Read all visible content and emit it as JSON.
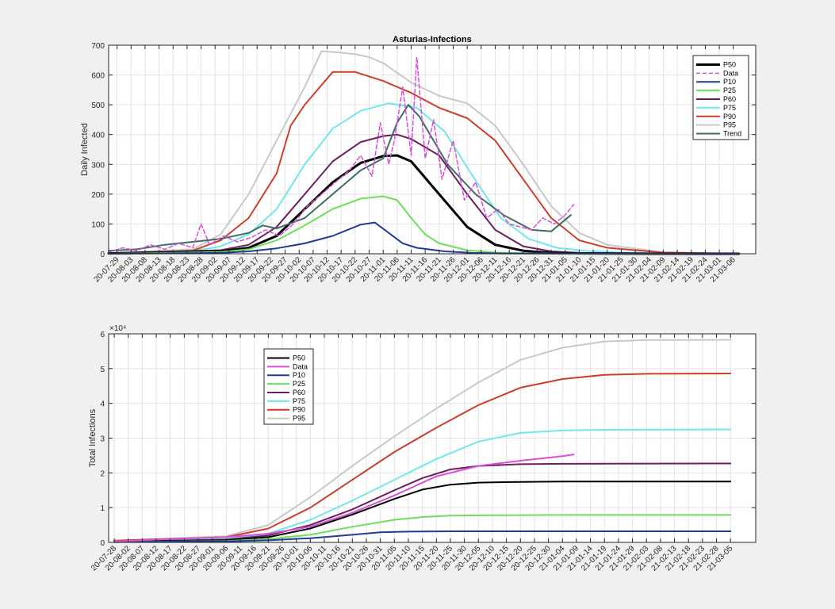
{
  "chart_data": [
    {
      "type": "line",
      "title": "Asturias-Infections",
      "ylabel": "Daily Infected",
      "xlabel": "",
      "ylim": [
        0,
        700
      ],
      "yticks": [
        0,
        100,
        200,
        300,
        400,
        500,
        600,
        700
      ],
      "yexp": "",
      "grid": true,
      "legend_position": "top-right",
      "x_start": "2020-07-26",
      "x_end": "2021-03-14",
      "xticks": [
        "20-07-29",
        "20-08-03",
        "20-08-08",
        "20-08-13",
        "20-08-18",
        "20-08-23",
        "20-08-28",
        "20-09-02",
        "20-09-07",
        "20-09-12",
        "20-09-17",
        "20-09-22",
        "20-09-27",
        "20-10-02",
        "20-10-07",
        "20-10-12",
        "20-10-17",
        "20-10-22",
        "20-10-27",
        "20-11-01",
        "20-11-06",
        "20-11-11",
        "20-11-16",
        "20-11-21",
        "20-11-26",
        "20-12-01",
        "20-12-06",
        "20-12-11",
        "20-12-16",
        "20-12-21",
        "20-12-26",
        "20-12-31",
        "21-01-05",
        "21-01-10",
        "21-01-15",
        "21-01-20",
        "21-01-25",
        "21-01-30",
        "21-02-04",
        "21-02-09",
        "21-02-14",
        "21-02-19",
        "21-02-24",
        "21-03-01",
        "21-03-06"
      ],
      "series": [
        {
          "name": "P95",
          "color": "#c8c8c8",
          "width": 2,
          "x": [
            "2020-07-26",
            "2020-08-25",
            "2020-09-04",
            "2020-09-14",
            "2020-09-24",
            "2020-10-04",
            "2020-10-10",
            "2020-10-17",
            "2020-10-22",
            "2020-10-27",
            "2020-11-01",
            "2020-11-11",
            "2020-11-21",
            "2020-12-01",
            "2020-12-11",
            "2020-12-21",
            "2020-12-31",
            "2021-01-10",
            "2021-01-20",
            "2021-02-09",
            "2021-03-08"
          ],
          "y": [
            2,
            15,
            65,
            200,
            380,
            560,
            680,
            675,
            670,
            660,
            640,
            575,
            530,
            505,
            430,
            300,
            160,
            70,
            30,
            5,
            0
          ]
        },
        {
          "name": "P90",
          "color": "#cc3e2b",
          "width": 2,
          "x": [
            "2020-07-26",
            "2020-08-25",
            "2020-09-04",
            "2020-09-14",
            "2020-09-24",
            "2020-09-29",
            "2020-10-04",
            "2020-10-14",
            "2020-10-22",
            "2020-11-01",
            "2020-11-11",
            "2020-11-21",
            "2020-12-01",
            "2020-12-11",
            "2020-12-21",
            "2020-12-31",
            "2021-01-10",
            "2021-01-20",
            "2021-02-09",
            "2021-03-08"
          ],
          "y": [
            2,
            10,
            45,
            120,
            270,
            430,
            500,
            610,
            610,
            580,
            540,
            490,
            455,
            380,
            250,
            120,
            45,
            20,
            4,
            0
          ]
        },
        {
          "name": "P75",
          "color": "#6ee8e8",
          "width": 2,
          "x": [
            "2020-07-26",
            "2020-08-25",
            "2020-09-04",
            "2020-09-14",
            "2020-09-24",
            "2020-10-04",
            "2020-10-14",
            "2020-10-24",
            "2020-11-03",
            "2020-11-13",
            "2020-11-23",
            "2020-12-03",
            "2020-12-13",
            "2020-12-23",
            "2021-01-02",
            "2021-01-12",
            "2021-01-22",
            "2021-02-09",
            "2021-03-08"
          ],
          "y": [
            1,
            8,
            25,
            65,
            150,
            300,
            420,
            480,
            505,
            490,
            410,
            260,
            120,
            50,
            20,
            10,
            5,
            1,
            0
          ]
        },
        {
          "name": "P60",
          "color": "#6b1f5c",
          "width": 2,
          "x": [
            "2020-07-26",
            "2020-09-04",
            "2020-09-14",
            "2020-09-24",
            "2020-10-04",
            "2020-10-14",
            "2020-10-24",
            "2020-11-01",
            "2020-11-06",
            "2020-11-11",
            "2020-11-21",
            "2020-12-01",
            "2020-12-11",
            "2020-12-21",
            "2020-12-31",
            "2021-01-10",
            "2021-02-09",
            "2021-03-08"
          ],
          "y": [
            1,
            12,
            30,
            90,
            200,
            310,
            375,
            395,
            400,
            385,
            330,
            200,
            80,
            25,
            8,
            3,
            1,
            0
          ]
        },
        {
          "name": "P50",
          "color": "#000000",
          "width": 3,
          "x": [
            "2020-07-26",
            "2020-09-04",
            "2020-09-14",
            "2020-09-24",
            "2020-10-04",
            "2020-10-14",
            "2020-10-24",
            "2020-11-01",
            "2020-11-06",
            "2020-11-11",
            "2020-11-21",
            "2020-12-01",
            "2020-12-11",
            "2020-12-21",
            "2020-12-31",
            "2021-01-10",
            "2021-02-09",
            "2021-03-08"
          ],
          "y": [
            1,
            8,
            20,
            60,
            150,
            240,
            305,
            328,
            330,
            310,
            200,
            90,
            30,
            10,
            3,
            1,
            0,
            0
          ]
        },
        {
          "name": "P25",
          "color": "#6de05a",
          "width": 2,
          "x": [
            "2020-07-26",
            "2020-09-04",
            "2020-09-14",
            "2020-09-24",
            "2020-10-04",
            "2020-10-14",
            "2020-10-24",
            "2020-11-01",
            "2020-11-06",
            "2020-11-11",
            "2020-11-16",
            "2020-11-21",
            "2020-12-01",
            "2020-12-11",
            "2020-12-21",
            "2021-01-05",
            "2021-03-08"
          ],
          "y": [
            0,
            6,
            15,
            45,
            95,
            150,
            185,
            193,
            180,
            120,
            65,
            35,
            12,
            4,
            2,
            0,
            0
          ]
        },
        {
          "name": "P10",
          "color": "#1f3c96",
          "width": 2,
          "x": [
            "2020-07-26",
            "2020-09-04",
            "2020-09-14",
            "2020-09-24",
            "2020-10-04",
            "2020-10-14",
            "2020-10-24",
            "2020-10-29",
            "2020-11-03",
            "2020-11-08",
            "2020-11-13",
            "2020-11-23",
            "2020-12-03",
            "2020-12-13",
            "2021-03-08"
          ],
          "y": [
            0,
            3,
            8,
            18,
            35,
            60,
            98,
            105,
            70,
            35,
            20,
            8,
            3,
            1,
            0
          ]
        },
        {
          "name": "Trend",
          "color": "#3f6b68",
          "width": 2,
          "x": [
            "2020-07-26",
            "2020-08-05",
            "2020-08-15",
            "2020-08-25",
            "2020-09-04",
            "2020-09-14",
            "2020-09-19",
            "2020-09-24",
            "2020-10-04",
            "2020-10-14",
            "2020-10-24",
            "2020-11-01",
            "2020-11-06",
            "2020-11-10",
            "2020-11-14",
            "2020-11-24",
            "2020-12-04",
            "2020-12-14",
            "2020-12-24",
            "2020-12-31",
            "2021-01-07"
          ],
          "y": [
            10,
            15,
            30,
            40,
            50,
            70,
            95,
            85,
            120,
            200,
            280,
            320,
            440,
            500,
            460,
            300,
            200,
            130,
            80,
            75,
            130
          ]
        },
        {
          "name": "Data",
          "color": "#d84fd8",
          "width": 1.5,
          "dash": "5,3",
          "x": [
            "2020-07-26",
            "2020-07-31",
            "2020-08-05",
            "2020-08-10",
            "2020-08-15",
            "2020-08-20",
            "2020-08-25",
            "2020-08-28",
            "2020-08-31",
            "2020-09-05",
            "2020-09-10",
            "2020-09-15",
            "2020-09-20",
            "2020-09-25",
            "2020-09-30",
            "2020-10-05",
            "2020-10-10",
            "2020-10-15",
            "2020-10-20",
            "2020-10-24",
            "2020-10-28",
            "2020-10-31",
            "2020-11-03",
            "2020-11-05",
            "2020-11-08",
            "2020-11-11",
            "2020-11-13",
            "2020-11-16",
            "2020-11-19",
            "2020-11-22",
            "2020-11-26",
            "2020-11-30",
            "2020-12-04",
            "2020-12-08",
            "2020-12-12",
            "2020-12-16",
            "2020-12-20",
            "2020-12-24",
            "2020-12-28",
            "2021-01-01",
            "2021-01-05",
            "2021-01-08"
          ],
          "y": [
            5,
            20,
            10,
            30,
            15,
            35,
            20,
            100,
            30,
            60,
            40,
            55,
            80,
            60,
            100,
            160,
            200,
            240,
            280,
            330,
            260,
            440,
            300,
            380,
            560,
            330,
            660,
            320,
            450,
            250,
            380,
            180,
            240,
            120,
            150,
            100,
            90,
            80,
            120,
            100,
            130,
            165
          ]
        }
      ]
    },
    {
      "type": "line",
      "title": "",
      "ylabel": "Total Infections",
      "xlabel": "",
      "ylim": [
        0,
        6
      ],
      "yticks": [
        0,
        1,
        2,
        3,
        4,
        5,
        6
      ],
      "yexp": "×10⁴",
      "grid": true,
      "legend_position": "top-left",
      "x_start": "2020-07-26",
      "x_end": "2021-03-14",
      "xticks": [
        "20-07-28",
        "20-08-02",
        "20-08-07",
        "20-08-12",
        "20-08-17",
        "20-08-22",
        "20-08-27",
        "20-09-01",
        "20-09-06",
        "20-09-11",
        "20-09-16",
        "20-09-21",
        "20-09-26",
        "20-10-01",
        "20-10-06",
        "20-10-11",
        "20-10-16",
        "20-10-21",
        "20-10-26",
        "20-10-31",
        "20-11-05",
        "20-11-10",
        "20-11-15",
        "20-11-20",
        "20-11-25",
        "20-11-30",
        "20-12-05",
        "20-12-10",
        "20-12-15",
        "20-12-20",
        "20-12-25",
        "20-12-30",
        "21-01-04",
        "21-01-09",
        "21-01-14",
        "21-01-19",
        "21-01-24",
        "21-01-29",
        "21-02-03",
        "21-02-08",
        "21-02-13",
        "21-02-18",
        "21-02-23",
        "21-02-28",
        "21-03-05"
      ],
      "series": [
        {
          "name": "P95",
          "color": "#c8c8c8",
          "width": 2,
          "x": [
            "2020-07-28",
            "2020-09-06",
            "2020-09-21",
            "2020-10-06",
            "2020-10-21",
            "2020-11-05",
            "2020-11-20",
            "2020-12-05",
            "2020-12-20",
            "2021-01-04",
            "2021-01-19",
            "2021-02-03",
            "2021-03-05"
          ],
          "y": [
            0.05,
            0.18,
            0.5,
            1.3,
            2.2,
            3.05,
            3.85,
            4.6,
            5.25,
            5.6,
            5.78,
            5.82,
            5.83
          ]
        },
        {
          "name": "P90",
          "color": "#cc3e2b",
          "width": 2,
          "x": [
            "2020-07-28",
            "2020-09-06",
            "2020-09-21",
            "2020-10-06",
            "2020-10-21",
            "2020-11-05",
            "2020-11-20",
            "2020-12-05",
            "2020-12-20",
            "2021-01-04",
            "2021-01-19",
            "2021-02-03",
            "2021-03-05"
          ],
          "y": [
            0.05,
            0.15,
            0.4,
            1.0,
            1.8,
            2.6,
            3.3,
            3.95,
            4.45,
            4.7,
            4.82,
            4.85,
            4.86
          ]
        },
        {
          "name": "P75",
          "color": "#6ee8e8",
          "width": 2,
          "x": [
            "2020-07-28",
            "2020-09-06",
            "2020-09-21",
            "2020-10-06",
            "2020-10-21",
            "2020-11-05",
            "2020-11-20",
            "2020-12-05",
            "2020-12-20",
            "2021-01-04",
            "2021-01-19",
            "2021-03-05"
          ],
          "y": [
            0.03,
            0.1,
            0.25,
            0.65,
            1.2,
            1.8,
            2.4,
            2.9,
            3.15,
            3.22,
            3.24,
            3.25
          ]
        },
        {
          "name": "P60",
          "color": "#6b1f5c",
          "width": 2,
          "x": [
            "2020-07-28",
            "2020-09-06",
            "2020-09-21",
            "2020-10-06",
            "2020-10-21",
            "2020-11-05",
            "2020-11-15",
            "2020-11-25",
            "2020-12-05",
            "2020-12-20",
            "2021-01-04",
            "2021-03-05"
          ],
          "y": [
            0.02,
            0.08,
            0.2,
            0.5,
            0.95,
            1.5,
            1.85,
            2.1,
            2.2,
            2.25,
            2.26,
            2.27
          ]
        },
        {
          "name": "P50",
          "color": "#000000",
          "width": 2,
          "x": [
            "2020-07-28",
            "2020-09-06",
            "2020-09-21",
            "2020-10-06",
            "2020-10-21",
            "2020-11-05",
            "2020-11-15",
            "2020-11-25",
            "2020-12-05",
            "2020-12-20",
            "2021-01-04",
            "2021-03-05"
          ],
          "y": [
            0.02,
            0.06,
            0.15,
            0.4,
            0.8,
            1.25,
            1.52,
            1.66,
            1.72,
            1.74,
            1.75,
            1.75
          ]
        },
        {
          "name": "P25",
          "color": "#6de05a",
          "width": 2,
          "x": [
            "2020-07-28",
            "2020-09-06",
            "2020-09-21",
            "2020-10-06",
            "2020-10-21",
            "2020-11-05",
            "2020-11-15",
            "2020-11-25",
            "2020-12-10",
            "2021-01-04",
            "2021-03-05"
          ],
          "y": [
            0.01,
            0.04,
            0.1,
            0.22,
            0.45,
            0.65,
            0.73,
            0.77,
            0.78,
            0.79,
            0.79
          ]
        },
        {
          "name": "P10",
          "color": "#1f3c96",
          "width": 2,
          "x": [
            "2020-07-28",
            "2020-09-06",
            "2020-09-21",
            "2020-10-06",
            "2020-10-21",
            "2020-10-31",
            "2020-11-10",
            "2020-11-25",
            "2021-03-05"
          ],
          "y": [
            0.01,
            0.03,
            0.06,
            0.12,
            0.22,
            0.29,
            0.31,
            0.32,
            0.32
          ]
        },
        {
          "name": "Data",
          "color": "#d84fd8",
          "width": 2,
          "x": [
            "2020-07-28",
            "2020-08-17",
            "2020-09-06",
            "2020-09-21",
            "2020-10-06",
            "2020-10-21",
            "2020-11-05",
            "2020-11-20",
            "2020-12-05",
            "2020-12-20",
            "2021-01-04",
            "2021-01-08"
          ],
          "y": [
            0.02,
            0.1,
            0.15,
            0.25,
            0.45,
            0.85,
            1.35,
            1.9,
            2.2,
            2.35,
            2.48,
            2.53
          ]
        }
      ]
    }
  ],
  "legend_order": [
    "P50",
    "Data",
    "P10",
    "P25",
    "P60",
    "P75",
    "P90",
    "P95",
    "Trend"
  ]
}
